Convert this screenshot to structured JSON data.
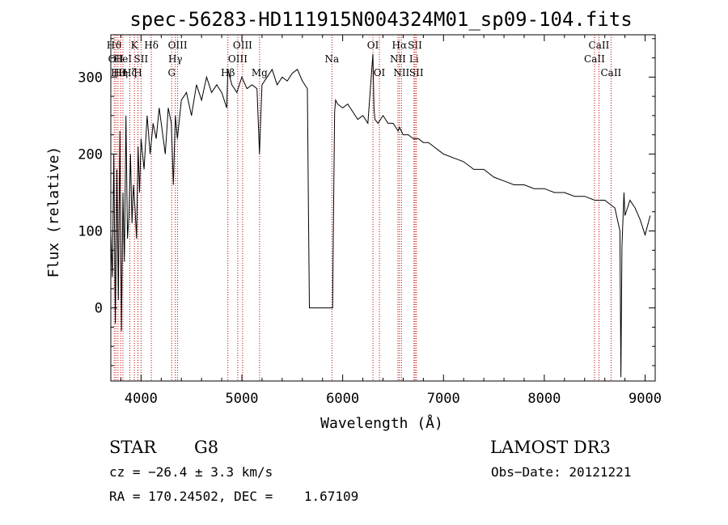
{
  "chart_data": {
    "type": "line",
    "title": "spec-56283-HD111915N004324M01_sp09-104.fits",
    "xlabel": "Wavelength (Å)",
    "ylabel": "Flux (relative)",
    "xlim": [
      3700,
      9100
    ],
    "ylim": [
      -95,
      355
    ],
    "xticks": [
      4000,
      5000,
      6000,
      7000,
      8000,
      9000
    ],
    "yticks": [
      0,
      100,
      200,
      300
    ],
    "line_color": "#000000",
    "marker_color": "#c00000",
    "series": [
      {
        "name": "spectrum",
        "x": [
          3700,
          3715,
          3730,
          3745,
          3760,
          3775,
          3790,
          3805,
          3820,
          3835,
          3850,
          3865,
          3880,
          3895,
          3910,
          3925,
          3940,
          3955,
          3970,
          3985,
          4000,
          4030,
          4060,
          4090,
          4120,
          4150,
          4180,
          4210,
          4240,
          4270,
          4300,
          4320,
          4340,
          4360,
          4400,
          4450,
          4500,
          4550,
          4600,
          4650,
          4700,
          4750,
          4800,
          4850,
          4861,
          4900,
          4950,
          5000,
          5050,
          5100,
          5150,
          5175,
          5185,
          5200,
          5250,
          5300,
          5350,
          5400,
          5450,
          5500,
          5550,
          5600,
          5650,
          5660,
          5670,
          5680,
          5700,
          5800,
          5900,
          5910,
          5920,
          5930,
          5950,
          6000,
          6050,
          6100,
          6150,
          6200,
          6250,
          6300,
          6310,
          6320,
          6350,
          6400,
          6450,
          6500,
          6550,
          6563,
          6600,
          6650,
          6700,
          6750,
          6800,
          6850,
          6900,
          6950,
          7000,
          7100,
          7200,
          7300,
          7400,
          7500,
          7600,
          7700,
          7800,
          7900,
          8000,
          8100,
          8200,
          8300,
          8400,
          8500,
          8600,
          8700,
          8750,
          8760,
          8770,
          8790,
          8800,
          8850,
          8900,
          8950,
          9000,
          9050
        ],
        "y": [
          100,
          40,
          200,
          -20,
          180,
          10,
          230,
          -30,
          150,
          60,
          250,
          90,
          120,
          200,
          110,
          160,
          130,
          90,
          210,
          150,
          220,
          180,
          250,
          200,
          240,
          220,
          260,
          230,
          200,
          260,
          240,
          160,
          250,
          220,
          270,
          280,
          250,
          290,
          270,
          300,
          280,
          290,
          280,
          260,
          310,
          290,
          280,
          300,
          285,
          290,
          285,
          200,
          240,
          290,
          300,
          310,
          290,
          300,
          295,
          305,
          310,
          295,
          285,
          130,
          0,
          0,
          0,
          0,
          0,
          130,
          255,
          270,
          265,
          260,
          265,
          255,
          245,
          250,
          240,
          330,
          260,
          245,
          240,
          250,
          240,
          240,
          230,
          235,
          225,
          225,
          220,
          220,
          215,
          215,
          210,
          205,
          200,
          195,
          190,
          180,
          180,
          170,
          165,
          160,
          160,
          155,
          155,
          150,
          150,
          145,
          145,
          140,
          140,
          130,
          100,
          -90,
          80,
          150,
          120,
          140,
          130,
          115,
          95,
          120
        ],
        "color": "#000000"
      }
    ],
    "line_markers": [
      {
        "x": 3734,
        "labels": [
          "Hϑ"
        ],
        "level": 0
      },
      {
        "x": 3750,
        "labels": [
          "OII"
        ],
        "level": 1
      },
      {
        "x": 3771,
        "labels": [
          "Hθ"
        ],
        "level": 2
      },
      {
        "x": 3798,
        "labels": [
          "Hη"
        ],
        "level": 2
      },
      {
        "x": 3820,
        "labels": [
          "HeI"
        ],
        "level": 1
      },
      {
        "x": 3889,
        "labels": [
          "Hζ"
        ],
        "level": 2
      },
      {
        "x": 3934,
        "labels": [
          "K"
        ],
        "level": 0
      },
      {
        "x": 3969,
        "labels": [
          "H"
        ],
        "level": 2
      },
      {
        "x": 4000,
        "labels": [
          "SII"
        ],
        "level": 1
      },
      {
        "x": 4102,
        "labels": [
          "Hδ"
        ],
        "level": 0
      },
      {
        "x": 4304,
        "labels": [
          "G"
        ],
        "level": 2
      },
      {
        "x": 4340,
        "labels": [
          "Hγ"
        ],
        "level": 1
      },
      {
        "x": 4363,
        "labels": [
          "OIII"
        ],
        "level": 0
      },
      {
        "x": 4861,
        "labels": [
          "Hβ"
        ],
        "level": 2
      },
      {
        "x": 4959,
        "labels": [
          "OIII"
        ],
        "level": 1
      },
      {
        "x": 5007,
        "labels": [
          "OIII"
        ],
        "level": 0
      },
      {
        "x": 5175,
        "labels": [
          "Mg"
        ],
        "level": 2
      },
      {
        "x": 5893,
        "labels": [
          "Na"
        ],
        "level": 1
      },
      {
        "x": 6300,
        "labels": [
          "OI"
        ],
        "level": 0
      },
      {
        "x": 6364,
        "labels": [
          "OI"
        ],
        "level": 2
      },
      {
        "x": 6548,
        "labels": [
          "NII"
        ],
        "level": 1
      },
      {
        "x": 6563,
        "labels": [
          "Hα"
        ],
        "level": 0
      },
      {
        "x": 6583,
        "labels": [
          "NII"
        ],
        "level": 2
      },
      {
        "x": 6707,
        "labels": [
          "Li"
        ],
        "level": 1
      },
      {
        "x": 6717,
        "labels": [
          "SII"
        ],
        "level": 0
      },
      {
        "x": 6731,
        "labels": [
          "SII"
        ],
        "level": 2
      },
      {
        "x": 8498,
        "labels": [
          "CaII"
        ],
        "level": 1
      },
      {
        "x": 8542,
        "labels": [
          "CaII"
        ],
        "level": 0
      },
      {
        "x": 8662,
        "labels": [
          "CaII"
        ],
        "level": 2
      }
    ]
  },
  "info": {
    "class_label": "STAR",
    "subclass": "G8",
    "survey": "LAMOST DR3",
    "cz": "cz = −26.4 ± 3.3 km/s",
    "obs_date": "Obs−Date: 20121221",
    "radec": "RA = 170.24502, DEC =    1.67109"
  }
}
